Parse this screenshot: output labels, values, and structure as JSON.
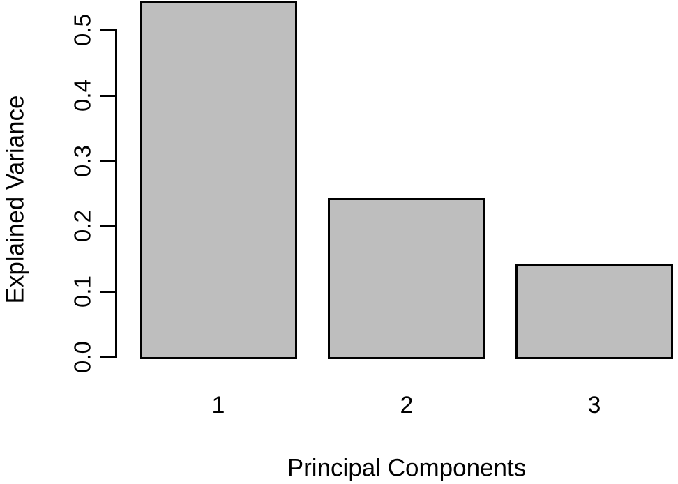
{
  "chart_data": {
    "type": "bar",
    "title": "",
    "xlabel": "Principal Components",
    "ylabel": "Explained Variance",
    "categories": [
      "1",
      "2",
      "3"
    ],
    "values": [
      0.545,
      0.243,
      0.143
    ],
    "yticks": [
      0.0,
      0.1,
      0.2,
      0.3,
      0.4,
      0.5
    ],
    "ytick_labels": [
      "0.0",
      "0.1",
      "0.2",
      "0.3",
      "0.4",
      "0.5"
    ],
    "ylim": [
      0,
      0.545
    ],
    "grid": false,
    "legend_position": "none",
    "bar_fill_color": "#BEBEBE",
    "bar_border_color": "#000000",
    "axis_color": "#000000",
    "text_color": "#000000",
    "background_color": "#FFFFFF"
  }
}
